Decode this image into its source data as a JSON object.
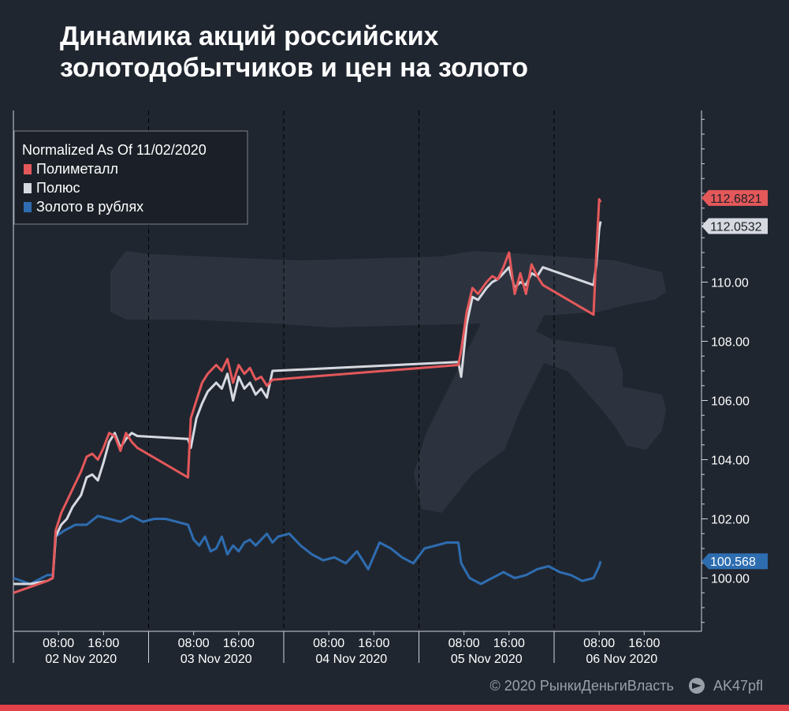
{
  "title": "Динамика акций российских золотодобытчиков и цен на золото",
  "footer": {
    "copyright": "© 2020  РынкиДеньгиВласть",
    "channel": "AK47pfl"
  },
  "colors": {
    "polymetal": "#e4585a",
    "polyus": "#d6d9e0",
    "gold": "#2e6db0",
    "background": "#202630",
    "axis": "#cfd3da",
    "accent_bar": "#e2424a"
  },
  "icons": {
    "watermark": "rifle-silhouette-icon",
    "telegram": "telegram-icon"
  },
  "chart_data": {
    "type": "line",
    "title": "Динамика акций российских золотодобытчиков и цен на золото",
    "subtitle": "Normalized As Of 11/02/2020",
    "legend_title": "Normalized As Of 11/02/2020",
    "legend_position": "top-left",
    "xlabel": "",
    "ylabel": "",
    "ylim": [
      98.2,
      115.8
    ],
    "yticks": [
      "100.00",
      "102.00",
      "104.00",
      "106.00",
      "108.00",
      "110.00"
    ],
    "y_axis_side": "right",
    "x_days": [
      "02 Nov 2020",
      "03 Nov 2020",
      "04 Nov 2020",
      "05 Nov 2020",
      "06 Nov 2020"
    ],
    "x_hour_ticks": [
      "08:00",
      "16:00"
    ],
    "day_boundaries": true,
    "grid": false,
    "last_values": [
      "112.6821",
      "112.0532",
      "100.568"
    ],
    "series": [
      {
        "name": "Полиметалл",
        "color": "#e4585a",
        "last_value": "112.6821",
        "points": [
          [
            "02 Nov 00:00",
            99.5
          ],
          [
            "02 Nov 03:00",
            99.7
          ],
          [
            "02 Nov 06:00",
            99.9
          ],
          [
            "02 Nov 07:00",
            100.0
          ],
          [
            "02 Nov 07:30",
            101.6
          ],
          [
            "02 Nov 08:30",
            102.2
          ],
          [
            "02 Nov 09:30",
            102.6
          ],
          [
            "02 Nov 10:30",
            103.0
          ],
          [
            "02 Nov 12:00",
            103.6
          ],
          [
            "02 Nov 13:00",
            104.1
          ],
          [
            "02 Nov 14:00",
            104.2
          ],
          [
            "02 Nov 15:00",
            104.0
          ],
          [
            "02 Nov 16:00",
            104.4
          ],
          [
            "02 Nov 17:00",
            104.9
          ],
          [
            "02 Nov 18:00",
            104.8
          ],
          [
            "02 Nov 19:00",
            104.3
          ],
          [
            "02 Nov 20:00",
            104.9
          ],
          [
            "02 Nov 21:00",
            104.6
          ],
          [
            "02 Nov 22:00",
            104.4
          ],
          [
            "03 Nov 07:00",
            103.4
          ],
          [
            "03 Nov 07:30",
            105.4
          ],
          [
            "03 Nov 08:30",
            106.0
          ],
          [
            "03 Nov 09:30",
            106.6
          ],
          [
            "03 Nov 10:30",
            106.9
          ],
          [
            "03 Nov 12:00",
            107.2
          ],
          [
            "03 Nov 13:00",
            107.0
          ],
          [
            "03 Nov 14:00",
            107.4
          ],
          [
            "03 Nov 15:00",
            106.6
          ],
          [
            "03 Nov 16:00",
            107.2
          ],
          [
            "03 Nov 17:00",
            106.9
          ],
          [
            "03 Nov 18:00",
            107.1
          ],
          [
            "03 Nov 19:00",
            106.7
          ],
          [
            "03 Nov 20:00",
            106.8
          ],
          [
            "03 Nov 21:00",
            106.5
          ],
          [
            "03 Nov 22:00",
            106.7
          ],
          [
            "05 Nov 07:00",
            107.2
          ],
          [
            "05 Nov 07:30",
            107.7
          ],
          [
            "05 Nov 08:30",
            109.0
          ],
          [
            "05 Nov 09:30",
            109.8
          ],
          [
            "05 Nov 10:30",
            109.6
          ],
          [
            "05 Nov 12:00",
            110.0
          ],
          [
            "05 Nov 13:00",
            110.2
          ],
          [
            "05 Nov 14:00",
            110.1
          ],
          [
            "05 Nov 15:00",
            110.5
          ],
          [
            "05 Nov 16:00",
            111.0
          ],
          [
            "05 Nov 17:00",
            109.6
          ],
          [
            "05 Nov 18:00",
            110.3
          ],
          [
            "05 Nov 19:00",
            109.6
          ],
          [
            "05 Nov 20:00",
            110.6
          ],
          [
            "05 Nov 21:00",
            110.2
          ],
          [
            "05 Nov 22:00",
            109.9
          ],
          [
            "06 Nov 07:00",
            108.9
          ],
          [
            "06 Nov 07:30",
            111.0
          ],
          [
            "06 Nov 08:00",
            112.8
          ],
          [
            "06 Nov 08:15",
            112.7
          ]
        ]
      },
      {
        "name": "Полюс",
        "color": "#d6d9e0",
        "last_value": "112.0532",
        "points": [
          [
            "02 Nov 00:00",
            99.8
          ],
          [
            "02 Nov 03:00",
            99.8
          ],
          [
            "02 Nov 06:00",
            99.9
          ],
          [
            "02 Nov 07:00",
            100.0
          ],
          [
            "02 Nov 07:30",
            101.4
          ],
          [
            "02 Nov 08:30",
            101.8
          ],
          [
            "02 Nov 09:30",
            102.0
          ],
          [
            "02 Nov 10:30",
            102.4
          ],
          [
            "02 Nov 12:00",
            102.8
          ],
          [
            "02 Nov 13:00",
            103.4
          ],
          [
            "02 Nov 14:00",
            103.5
          ],
          [
            "02 Nov 15:00",
            103.3
          ],
          [
            "02 Nov 16:00",
            103.9
          ],
          [
            "02 Nov 17:00",
            104.6
          ],
          [
            "02 Nov 18:00",
            104.9
          ],
          [
            "02 Nov 19:00",
            104.4
          ],
          [
            "02 Nov 20:00",
            104.7
          ],
          [
            "02 Nov 21:00",
            104.9
          ],
          [
            "02 Nov 22:00",
            104.8
          ],
          [
            "03 Nov 07:00",
            104.7
          ],
          [
            "03 Nov 07:30",
            104.4
          ],
          [
            "03 Nov 08:30",
            105.4
          ],
          [
            "03 Nov 09:30",
            105.9
          ],
          [
            "03 Nov 10:30",
            106.3
          ],
          [
            "03 Nov 12:00",
            106.6
          ],
          [
            "03 Nov 13:00",
            106.4
          ],
          [
            "03 Nov 14:00",
            106.9
          ],
          [
            "03 Nov 15:00",
            106.0
          ],
          [
            "03 Nov 16:00",
            106.8
          ],
          [
            "03 Nov 17:00",
            106.4
          ],
          [
            "03 Nov 18:00",
            106.6
          ],
          [
            "03 Nov 19:00",
            106.2
          ],
          [
            "03 Nov 20:00",
            106.4
          ],
          [
            "03 Nov 21:00",
            106.1
          ],
          [
            "03 Nov 22:00",
            107.0
          ],
          [
            "05 Nov 07:00",
            107.3
          ],
          [
            "05 Nov 07:30",
            106.8
          ],
          [
            "05 Nov 08:30",
            108.6
          ],
          [
            "05 Nov 09:30",
            109.5
          ],
          [
            "05 Nov 10:30",
            109.4
          ],
          [
            "05 Nov 12:00",
            109.8
          ],
          [
            "05 Nov 13:00",
            110.0
          ],
          [
            "05 Nov 14:00",
            110.1
          ],
          [
            "05 Nov 15:00",
            110.3
          ],
          [
            "05 Nov 16:00",
            110.5
          ],
          [
            "05 Nov 17:00",
            109.8
          ],
          [
            "05 Nov 18:00",
            110.0
          ],
          [
            "05 Nov 19:00",
            109.9
          ],
          [
            "05 Nov 20:00",
            110.3
          ],
          [
            "05 Nov 21:00",
            110.2
          ],
          [
            "05 Nov 22:00",
            110.5
          ],
          [
            "06 Nov 07:00",
            109.9
          ],
          [
            "06 Nov 07:30",
            110.6
          ],
          [
            "06 Nov 08:00",
            111.8
          ],
          [
            "06 Nov 08:15",
            112.05
          ]
        ]
      },
      {
        "name": "Золото в рублях",
        "color": "#2e6db0",
        "last_value": "100.568",
        "points": [
          [
            "02 Nov 00:00",
            100.0
          ],
          [
            "02 Nov 03:00",
            99.8
          ],
          [
            "02 Nov 06:00",
            100.1
          ],
          [
            "02 Nov 07:00",
            100.1
          ],
          [
            "02 Nov 07:30",
            101.4
          ],
          [
            "02 Nov 09:00",
            101.6
          ],
          [
            "02 Nov 11:00",
            101.8
          ],
          [
            "02 Nov 13:00",
            101.8
          ],
          [
            "02 Nov 15:00",
            102.1
          ],
          [
            "02 Nov 17:00",
            102.0
          ],
          [
            "02 Nov 19:00",
            101.9
          ],
          [
            "02 Nov 21:00",
            102.1
          ],
          [
            "02 Nov 23:00",
            101.9
          ],
          [
            "03 Nov 01:00",
            102.0
          ],
          [
            "03 Nov 03:00",
            102.0
          ],
          [
            "03 Nov 05:00",
            101.9
          ],
          [
            "03 Nov 07:00",
            101.8
          ],
          [
            "03 Nov 08:00",
            101.3
          ],
          [
            "03 Nov 09:00",
            101.1
          ],
          [
            "03 Nov 10:00",
            101.4
          ],
          [
            "03 Nov 11:00",
            100.9
          ],
          [
            "03 Nov 12:00",
            101.0
          ],
          [
            "03 Nov 13:00",
            101.4
          ],
          [
            "03 Nov 14:00",
            100.8
          ],
          [
            "03 Nov 15:00",
            101.1
          ],
          [
            "03 Nov 16:00",
            100.9
          ],
          [
            "03 Nov 17:00",
            101.2
          ],
          [
            "03 Nov 18:00",
            101.3
          ],
          [
            "03 Nov 19:00",
            101.1
          ],
          [
            "03 Nov 20:00",
            101.3
          ],
          [
            "03 Nov 21:00",
            101.5
          ],
          [
            "03 Nov 22:00",
            101.2
          ],
          [
            "03 Nov 23:00",
            101.4
          ],
          [
            "04 Nov 01:00",
            101.5
          ],
          [
            "04 Nov 03:00",
            101.1
          ],
          [
            "04 Nov 05:00",
            100.8
          ],
          [
            "04 Nov 07:00",
            100.6
          ],
          [
            "04 Nov 09:00",
            100.7
          ],
          [
            "04 Nov 11:00",
            100.5
          ],
          [
            "04 Nov 13:00",
            100.9
          ],
          [
            "04 Nov 15:00",
            100.3
          ],
          [
            "04 Nov 17:00",
            101.2
          ],
          [
            "04 Nov 19:00",
            101.0
          ],
          [
            "04 Nov 21:00",
            100.7
          ],
          [
            "04 Nov 23:00",
            100.5
          ],
          [
            "05 Nov 01:00",
            101.0
          ],
          [
            "05 Nov 03:00",
            101.1
          ],
          [
            "05 Nov 05:00",
            101.2
          ],
          [
            "05 Nov 07:00",
            101.2
          ],
          [
            "05 Nov 07:30",
            100.5
          ],
          [
            "05 Nov 09:00",
            100.0
          ],
          [
            "05 Nov 11:00",
            99.8
          ],
          [
            "05 Nov 13:00",
            100.0
          ],
          [
            "05 Nov 15:00",
            100.2
          ],
          [
            "05 Nov 17:00",
            100.0
          ],
          [
            "05 Nov 19:00",
            100.1
          ],
          [
            "05 Nov 21:00",
            100.3
          ],
          [
            "05 Nov 23:00",
            100.4
          ],
          [
            "06 Nov 01:00",
            100.2
          ],
          [
            "06 Nov 03:00",
            100.1
          ],
          [
            "06 Nov 05:00",
            99.9
          ],
          [
            "06 Nov 07:00",
            100.0
          ],
          [
            "06 Nov 08:00",
            100.4
          ],
          [
            "06 Nov 08:15",
            100.57
          ]
        ]
      }
    ]
  }
}
